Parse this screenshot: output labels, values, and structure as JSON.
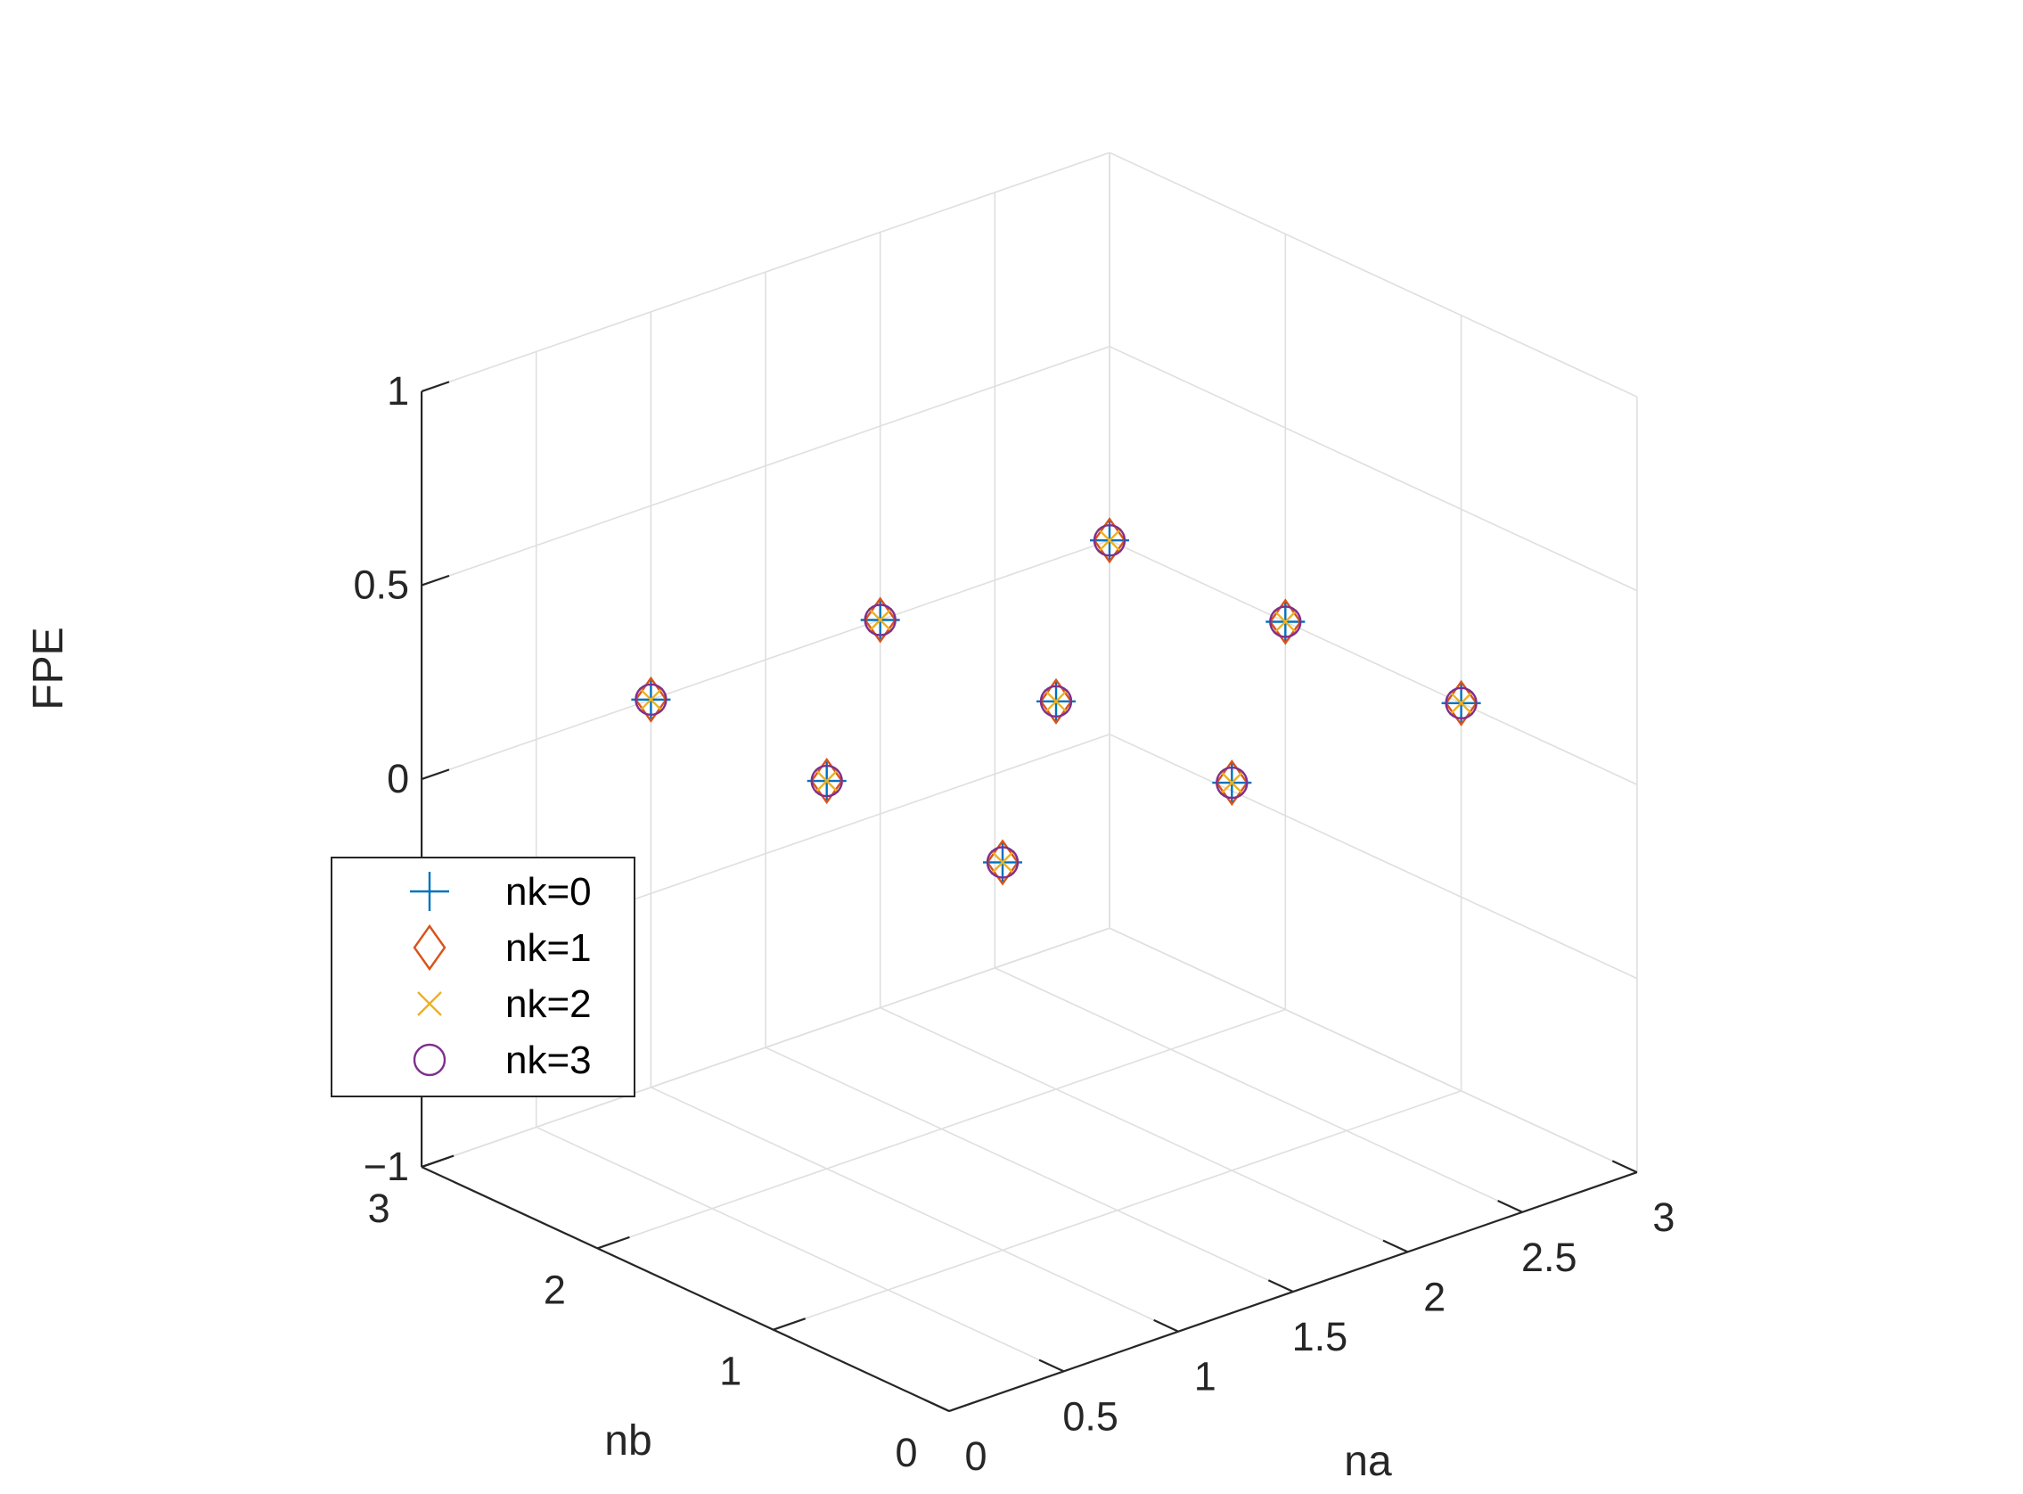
{
  "chart_data": {
    "type": "scatter",
    "projection": "3d",
    "grid": true,
    "legend_position": "bottom-left",
    "xlabel": "na",
    "ylabel": "nb",
    "zlabel": "FPE",
    "xlim": [
      0,
      3
    ],
    "ylim": [
      0,
      3
    ],
    "zlim": [
      -1,
      1
    ],
    "xticks": [
      "0",
      "0.5",
      "1",
      "1.5",
      "2",
      "2.5",
      "3"
    ],
    "yticks": [
      "0",
      "1",
      "2",
      "3"
    ],
    "zticks": [
      "−1",
      "−0.5",
      "0",
      "0.5",
      "1"
    ],
    "series": [
      {
        "name": "nk=0",
        "marker": "plus",
        "color": "#0072BD",
        "points": [
          [
            1,
            1,
            0
          ],
          [
            1,
            2,
            0
          ],
          [
            1,
            3,
            0
          ],
          [
            2,
            1,
            0
          ],
          [
            2,
            2,
            0
          ],
          [
            2,
            3,
            0
          ],
          [
            3,
            1,
            0
          ],
          [
            3,
            2,
            0
          ],
          [
            3,
            3,
            0
          ]
        ]
      },
      {
        "name": "nk=1",
        "marker": "diamond",
        "color": "#D95319",
        "points": [
          [
            1,
            1,
            0
          ],
          [
            1,
            2,
            0
          ],
          [
            1,
            3,
            0
          ],
          [
            2,
            1,
            0
          ],
          [
            2,
            2,
            0
          ],
          [
            2,
            3,
            0
          ],
          [
            3,
            1,
            0
          ],
          [
            3,
            2,
            0
          ],
          [
            3,
            3,
            0
          ]
        ]
      },
      {
        "name": "nk=2",
        "marker": "x",
        "color": "#EDB120",
        "points": [
          [
            1,
            1,
            0
          ],
          [
            1,
            2,
            0
          ],
          [
            1,
            3,
            0
          ],
          [
            2,
            1,
            0
          ],
          [
            2,
            2,
            0
          ],
          [
            2,
            3,
            0
          ],
          [
            3,
            1,
            0
          ],
          [
            3,
            2,
            0
          ],
          [
            3,
            3,
            0
          ]
        ]
      },
      {
        "name": "nk=3",
        "marker": "circle",
        "color": "#7E2F8E",
        "points": [
          [
            1,
            1,
            0
          ],
          [
            1,
            2,
            0
          ],
          [
            1,
            3,
            0
          ],
          [
            2,
            1,
            0
          ],
          [
            2,
            2,
            0
          ],
          [
            2,
            3,
            0
          ],
          [
            3,
            1,
            0
          ],
          [
            3,
            2,
            0
          ],
          [
            3,
            3,
            0
          ]
        ]
      }
    ]
  }
}
